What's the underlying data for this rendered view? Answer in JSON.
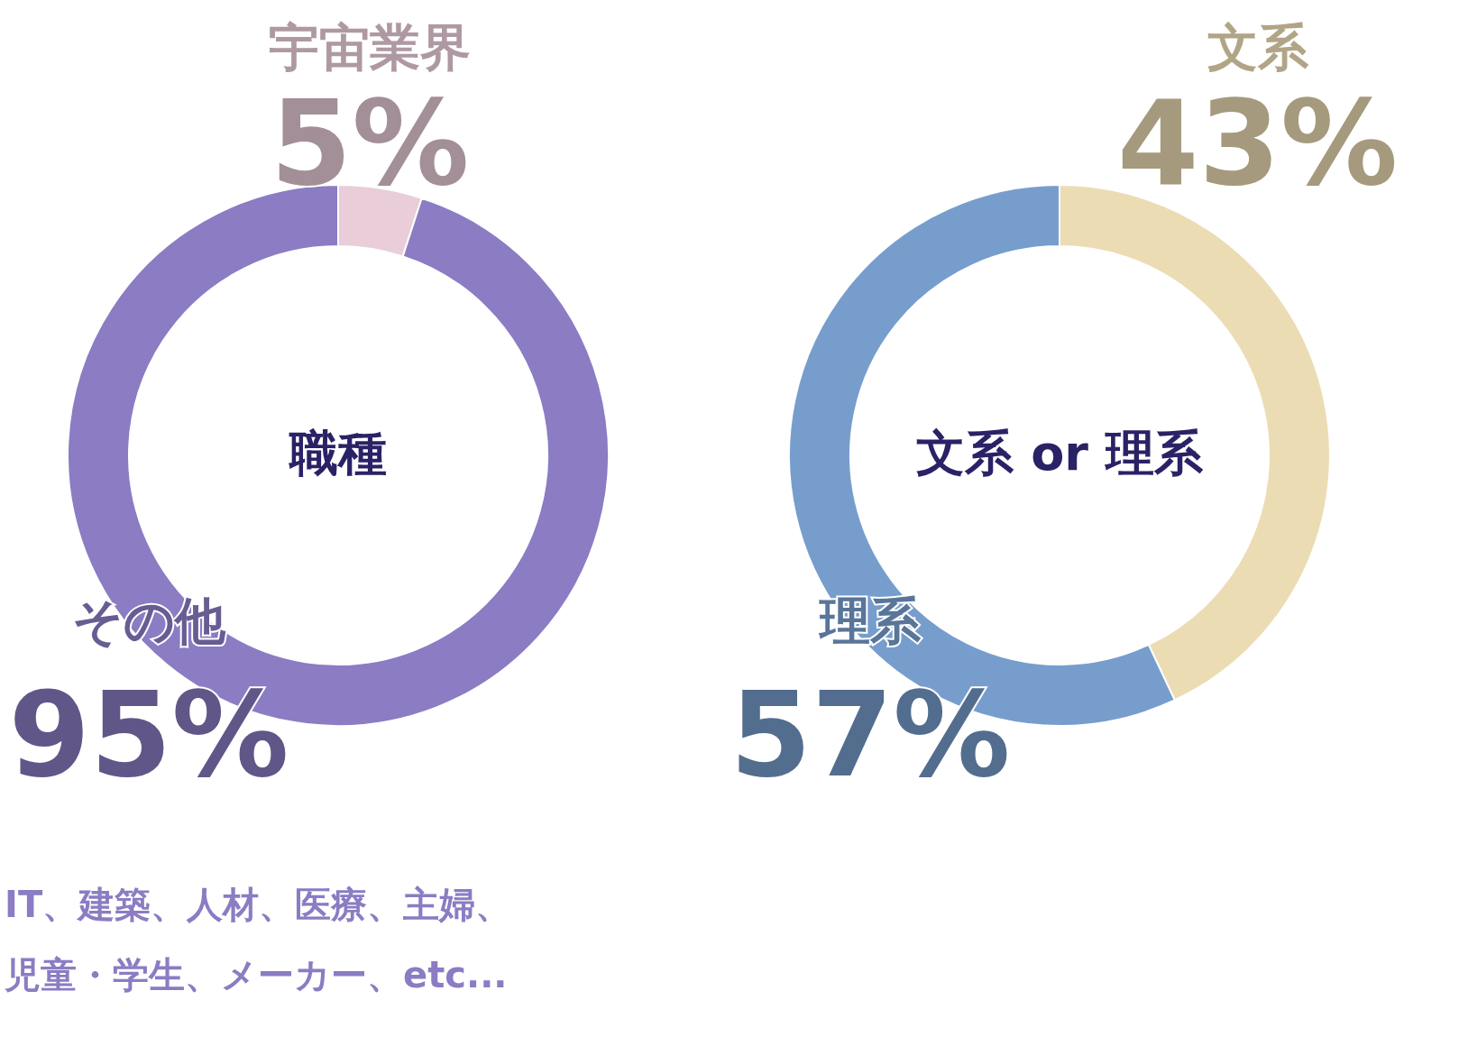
{
  "chart_data": [
    {
      "type": "donut",
      "title": "職種",
      "categories": [
        "宇宙業界",
        "その他"
      ],
      "values": [
        5,
        95
      ],
      "colors": [
        "#e9cdd9",
        "#8b7cc3"
      ],
      "value_labels": [
        "5%",
        "95%"
      ],
      "annotations": [
        "IT、建築、人材、医療、主婦、児童・学生、メーカー、etc..."
      ]
    },
    {
      "type": "donut",
      "title": "文系 or 理系",
      "categories": [
        "文系",
        "理系"
      ],
      "values": [
        43,
        57
      ],
      "colors": [
        "#ecdcb4",
        "#779dcd"
      ],
      "value_labels": [
        "43%",
        "57%"
      ]
    }
  ]
}
